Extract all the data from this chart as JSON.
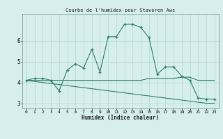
{
  "title": "Courbe de l'humidex pour Stavoren Aws",
  "xlabel": "Humidex (Indice chaleur)",
  "x": [
    0,
    1,
    2,
    3,
    4,
    5,
    6,
    7,
    8,
    9,
    10,
    11,
    12,
    13,
    14,
    15,
    16,
    17,
    18,
    19,
    20,
    21,
    22,
    23
  ],
  "line1_y": [
    4.1,
    4.2,
    4.2,
    4.1,
    3.6,
    4.6,
    4.9,
    4.7,
    5.6,
    4.5,
    6.2,
    6.2,
    6.8,
    6.8,
    6.65,
    6.15,
    4.4,
    4.75,
    4.75,
    4.3,
    4.1,
    3.25,
    3.2,
    3.2
  ],
  "line2_y": [
    4.1,
    4.1,
    4.1,
    4.1,
    4.1,
    4.1,
    4.1,
    4.1,
    4.1,
    4.1,
    4.1,
    4.1,
    4.1,
    4.1,
    4.1,
    4.2,
    4.2,
    4.2,
    4.2,
    4.25,
    4.25,
    4.1,
    4.1,
    4.1
  ],
  "line3_y": [
    4.1,
    4.05,
    4.0,
    3.95,
    3.9,
    3.85,
    3.8,
    3.75,
    3.7,
    3.65,
    3.6,
    3.55,
    3.5,
    3.45,
    3.4,
    3.35,
    3.3,
    3.25,
    3.2,
    3.15,
    3.1,
    3.05,
    3.0,
    3.0
  ],
  "line_color": "#2d7d6e",
  "bg_color": "#d6eeee",
  "grid_color": "#b8dada",
  "ylim": [
    2.75,
    7.3
  ],
  "yticks": [
    3,
    4,
    5,
    6
  ],
  "xlim": [
    -0.5,
    23.5
  ]
}
